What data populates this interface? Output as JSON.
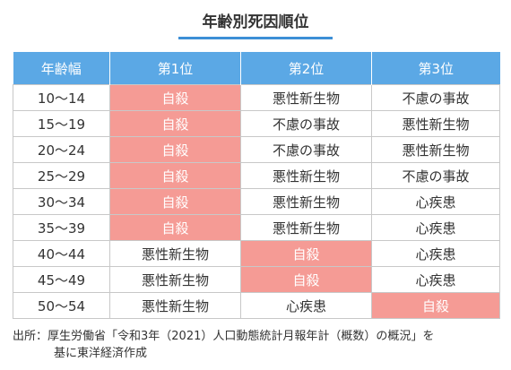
{
  "title": "年齢別死因順位",
  "table": {
    "header": [
      "年齢幅",
      "第1位",
      "第2位",
      "第3位"
    ],
    "header_color": "#5ba8e5",
    "highlight_color": "#f59b95",
    "rows": [
      [
        "10～14",
        {
          "text": "自殺",
          "highlight": true
        },
        "悪性新生物",
        "不慮の事故"
      ],
      [
        "15～19",
        {
          "text": "自殺",
          "highlight": true
        },
        "不慮の事故",
        "悪性新生物"
      ],
      [
        "20～24",
        {
          "text": "自殺",
          "highlight": true
        },
        "不慮の事故",
        "悪性新生物"
      ],
      [
        "25～29",
        {
          "text": "自殺",
          "highlight": true
        },
        "悪性新生物",
        "不慮の事故"
      ],
      [
        "30～34",
        {
          "text": "自殺",
          "highlight": true
        },
        "悪性新生物",
        "心疾患"
      ],
      [
        "35～39",
        {
          "text": "自殺",
          "highlight": true
        },
        "悪性新生物",
        "心疾患"
      ],
      [
        "40～44",
        "悪性新生物",
        {
          "text": "自殺",
          "highlight": true
        },
        "心疾患"
      ],
      [
        "45～49",
        "悪性新生物",
        {
          "text": "自殺",
          "highlight": true
        },
        "心疾患"
      ],
      [
        "50～54",
        "悪性新生物",
        "心疾患",
        {
          "text": "自殺",
          "highlight": true
        }
      ]
    ]
  },
  "source": [
    "出所：厚生労働省「令和3年（2021）人口動態統計月報年計（概数）の概況」を",
    "基に東洋経済作成"
  ]
}
